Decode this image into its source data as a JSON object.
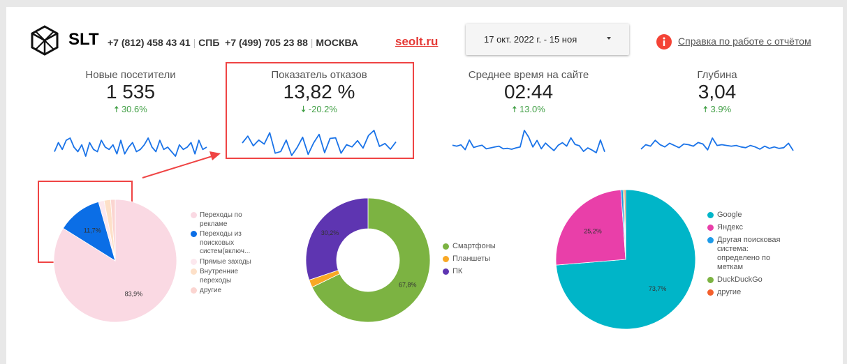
{
  "header": {
    "brand": "SLT",
    "phone1": "+7 (812) 458 43 41",
    "city1": "СПБ",
    "phone2": "+7 (499) 705 23 88",
    "city2": "МОСКВА",
    "site": "seolt.ru",
    "date_range": "17 окт. 2022 г. - 15 ноя",
    "help_label": "Справка по работе с отчётом",
    "help_icon": "info-icon"
  },
  "kpis": [
    {
      "label": "Новые посетители",
      "value": "1 535",
      "delta": "30.6%",
      "direction": "up"
    },
    {
      "label": "Показатель отказов",
      "value": "13,82 %",
      "delta": "-20.2%",
      "direction": "down"
    },
    {
      "label": "Среднее время на сайте",
      "value": "02:44",
      "delta": "13.0%",
      "direction": "up"
    },
    {
      "label": "Глубина",
      "value": "3,04",
      "delta": "3.9%",
      "direction": "up"
    }
  ],
  "colors": {
    "accent": "#e53935",
    "positive": "#43a047",
    "spark": "#1a73e8"
  },
  "chart_data": [
    {
      "type": "pie",
      "categories": [
        "Переходы по рекламе",
        "Переходы из поисковых систем(включ...",
        "Прямые заходы",
        "Внутренние переходы",
        "другие"
      ],
      "values": [
        83.9,
        11.7,
        1.5,
        1.7,
        1.2
      ],
      "labels": [
        "83,9%",
        "11,7%",
        "",
        "",
        ""
      ],
      "colors": [
        "#fad9e3",
        "#0b6ee6",
        "#fce8ee",
        "#fde0c8",
        "#fbd5d1"
      ]
    },
    {
      "type": "pie",
      "donut": true,
      "categories": [
        "Смартфоны",
        "Планшеты",
        "ПК"
      ],
      "values": [
        67.8,
        2.0,
        30.2
      ],
      "labels": [
        "67,8%",
        "",
        "30,2%"
      ],
      "colors": [
        "#7cb342",
        "#f9a825",
        "#5e35b1"
      ]
    },
    {
      "type": "pie",
      "categories": [
        "Google",
        "Яндекс",
        "Другая поисковая система: определено по меткам",
        "DuckDuckGo",
        "другие"
      ],
      "values": [
        73.7,
        25.2,
        0.5,
        0.3,
        0.3
      ],
      "labels": [
        "73,7%",
        "25,2%",
        "",
        "",
        ""
      ],
      "colors": [
        "#00b5c8",
        "#e93fa9",
        "#1e9be8",
        "#7cb342",
        "#f4602d"
      ]
    },
    {
      "type": "line",
      "name": "spark-new-visitors",
      "values": [
        5,
        5.4,
        5.1,
        5.5,
        5.6,
        5.2,
        5,
        5.3,
        4.8,
        5.4,
        5.1,
        5,
        5.5,
        5.2,
        5.1,
        5.3,
        4.9,
        5.5,
        4.9,
        5.2,
        5.4,
        5,
        5.1,
        5.3,
        5.6,
        5.2,
        5,
        5.5,
        5.1,
        5.2,
        5,
        4.8,
        5.3,
        5.1,
        5.2,
        5.4,
        4.9,
        5.5,
        5.1,
        5.2
      ]
    },
    {
      "type": "line",
      "name": "spark-bounce",
      "values": [
        5,
        6.2,
        4.5,
        5.5,
        4.8,
        6.8,
        3.2,
        3.5,
        5.5,
        2.8,
        4.2,
        6,
        3,
        5,
        6.5,
        3.3,
        5.8,
        5.9,
        3.2,
        4.7,
        4.3,
        5.4,
        4.1,
        6.3,
        7.2,
        4.4,
        4.9,
        3.9,
        5.2
      ]
    },
    {
      "type": "line",
      "name": "spark-time",
      "values": [
        5,
        4.8,
        5.1,
        4,
        6.2,
        4.5,
        4.8,
        5,
        4.2,
        4.4,
        4.6,
        4.8,
        4.2,
        4.3,
        4.1,
        4.4,
        4.6,
        8.4,
        6.9,
        4.6,
        6.1,
        4.2,
        5.5,
        4.6,
        3.8,
        5,
        5.6,
        4.8,
        6.7,
        5.2,
        4.9,
        3.6,
        4.4,
        3.9,
        3.3,
        6.2,
        3.5
      ]
    },
    {
      "type": "line",
      "name": "spark-depth",
      "values": [
        4.7,
        5.3,
        5.1,
        5.9,
        5.3,
        5,
        5.5,
        5.2,
        4.9,
        5.4,
        5.3,
        5.1,
        5.6,
        5.4,
        4.6,
        6.2,
        5.2,
        5.3,
        5.2,
        5.1,
        5.2,
        5,
        4.9,
        5.2,
        5,
        4.7,
        5.1,
        4.8,
        5,
        4.8,
        4.9,
        5.5,
        4.5
      ]
    }
  ]
}
